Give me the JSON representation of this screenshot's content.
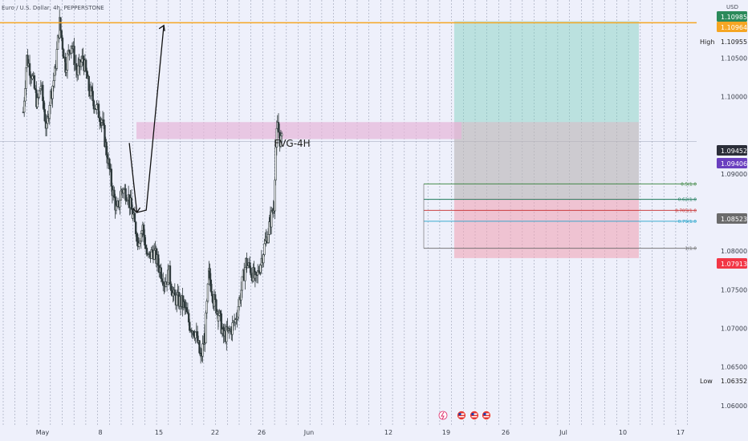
{
  "header": {
    "title": "Euro / U.S. Dollar, 4h, PEPPERSTONE",
    "currency": "USD"
  },
  "annotations": {
    "fvg": "FVG-4H",
    "high": "High",
    "low": "Low"
  },
  "colors": {
    "background": "#eef0fb",
    "up": "#2f3a3c",
    "down": "#2f3a3c",
    "resistance": "#f5a623",
    "fvg": "#e6b5d9",
    "target": "#7ccfbd",
    "stop": "#f0a3b5",
    "fib_05": "#2e7d32",
    "fib_062": "#1b7a5a",
    "fib_0705": "#c62828",
    "fib_079": "#1fa2c9",
    "fib_1": "#666666"
  },
  "chart_data": {
    "type": "candlestick",
    "title": "Euro / U.S. Dollar, 4h, PEPPERSTONE",
    "ylabel": "USD",
    "ylim": [
      1.0575,
      1.1125
    ],
    "y_ticks": [
      "1.10500",
      "1.10000",
      "1.09000",
      "1.08000",
      "1.07500",
      "1.07000",
      "1.06500",
      "1.06000"
    ],
    "x_ticks": [
      "May",
      "8",
      "15",
      "22",
      "26",
      "Jun",
      "12",
      "19",
      "26",
      "Jul",
      "10",
      "17"
    ],
    "price_labels": [
      {
        "value": "1.10985",
        "color": "#2b8a5a"
      },
      {
        "value": "1.10964",
        "color": "#f5a623"
      },
      {
        "value": "1.09452",
        "color": "#2b2e39"
      },
      {
        "value": "1.09406",
        "color": "#6a3fbf"
      },
      {
        "value": "1.08523",
        "color": "#6b6b6b"
      },
      {
        "value": "1.07913",
        "color": "#f23645"
      }
    ],
    "high": {
      "label": "High",
      "value": "1.10955"
    },
    "low": {
      "label": "Low",
      "value": "1.06352"
    },
    "fvg_zone": {
      "label": "FVG-4H",
      "top": 1.0967,
      "bottom": 1.0945
    },
    "fib_levels": [
      {
        "label": "0.5(1.08870)",
        "value": 1.0887
      },
      {
        "label": "0.62(1.08670)",
        "value": 1.0867
      },
      {
        "label": "0.705(1.08528)",
        "value": 1.08528
      },
      {
        "label": "0.79(1.08386)",
        "value": 1.08386
      },
      {
        "label": "1(1.08036)",
        "value": 1.08036
      }
    ],
    "position": {
      "entry": 1.0868,
      "target": 1.10975,
      "stop": 1.0791
    },
    "path": [
      {
        "day": 15.9,
        "price": 1.094
      },
      {
        "day": 17.2,
        "price": 1.085
      },
      {
        "day": 18.8,
        "price": 1.0853
      },
      {
        "day": 21.8,
        "price": 1.1092
      }
    ],
    "ohlc_path": [
      {
        "day": -2.2,
        "price": 1.098
      },
      {
        "day": -1.6,
        "price": 1.105
      },
      {
        "day": -0.8,
        "price": 1.103
      },
      {
        "day": 0.2,
        "price": 1.099
      },
      {
        "day": 0.8,
        "price": 1.1015
      },
      {
        "day": 1.8,
        "price": 1.0955
      },
      {
        "day": 2.3,
        "price": 1.0995
      },
      {
        "day": 3.2,
        "price": 1.103
      },
      {
        "day": 4.0,
        "price": 1.1095
      },
      {
        "day": 5.0,
        "price": 1.104
      },
      {
        "day": 6.0,
        "price": 1.107
      },
      {
        "day": 7.0,
        "price": 1.103
      },
      {
        "day": 8.0,
        "price": 1.105
      },
      {
        "day": 9.0,
        "price": 1.101
      },
      {
        "day": 10.0,
        "price": 1.099
      },
      {
        "day": 11.2,
        "price": 1.097
      },
      {
        "day": 12.0,
        "price": 1.093
      },
      {
        "day": 13.0,
        "price": 1.088
      },
      {
        "day": 13.8,
        "price": 1.085
      },
      {
        "day": 14.6,
        "price": 1.088
      },
      {
        "day": 15.6,
        "price": 1.0875
      },
      {
        "day": 16.5,
        "price": 1.0845
      },
      {
        "day": 17.4,
        "price": 1.0815
      },
      {
        "day": 18.2,
        "price": 1.083
      },
      {
        "day": 19.0,
        "price": 1.079
      },
      {
        "day": 20.0,
        "price": 1.08
      },
      {
        "day": 21.0,
        "price": 1.078
      },
      {
        "day": 22.0,
        "price": 1.076
      },
      {
        "day": 22.7,
        "price": 1.077
      },
      {
        "day": 23.5,
        "price": 1.074
      },
      {
        "day": 24.5,
        "price": 1.0735
      },
      {
        "day": 25.2,
        "price": 1.073
      },
      {
        "day": 26.2,
        "price": 1.0705
      },
      {
        "day": 27.2,
        "price": 1.0695
      },
      {
        "day": 28.1,
        "price": 1.066
      },
      {
        "day": 28.8,
        "price": 1.069
      },
      {
        "day": 29.5,
        "price": 1.077
      },
      {
        "day": 30.4,
        "price": 1.0735
      },
      {
        "day": 31.1,
        "price": 1.072
      },
      {
        "day": 32.0,
        "price": 1.069
      },
      {
        "day": 33.0,
        "price": 1.0695
      },
      {
        "day": 34.0,
        "price": 1.071
      },
      {
        "day": 35.0,
        "price": 1.075
      },
      {
        "day": 35.8,
        "price": 1.0785
      },
      {
        "day": 36.7,
        "price": 1.0775
      },
      {
        "day": 37.5,
        "price": 1.076
      },
      {
        "day": 38.3,
        "price": 1.0785
      },
      {
        "day": 39.1,
        "price": 1.081
      },
      {
        "day": 40.0,
        "price": 1.084
      },
      {
        "day": 40.6,
        "price": 1.086
      },
      {
        "day": 40.9,
        "price": 1.0935
      },
      {
        "day": 41.2,
        "price": 1.096
      },
      {
        "day": 41.6,
        "price": 1.0945
      },
      {
        "day": 42.0,
        "price": 1.0941
      }
    ]
  }
}
